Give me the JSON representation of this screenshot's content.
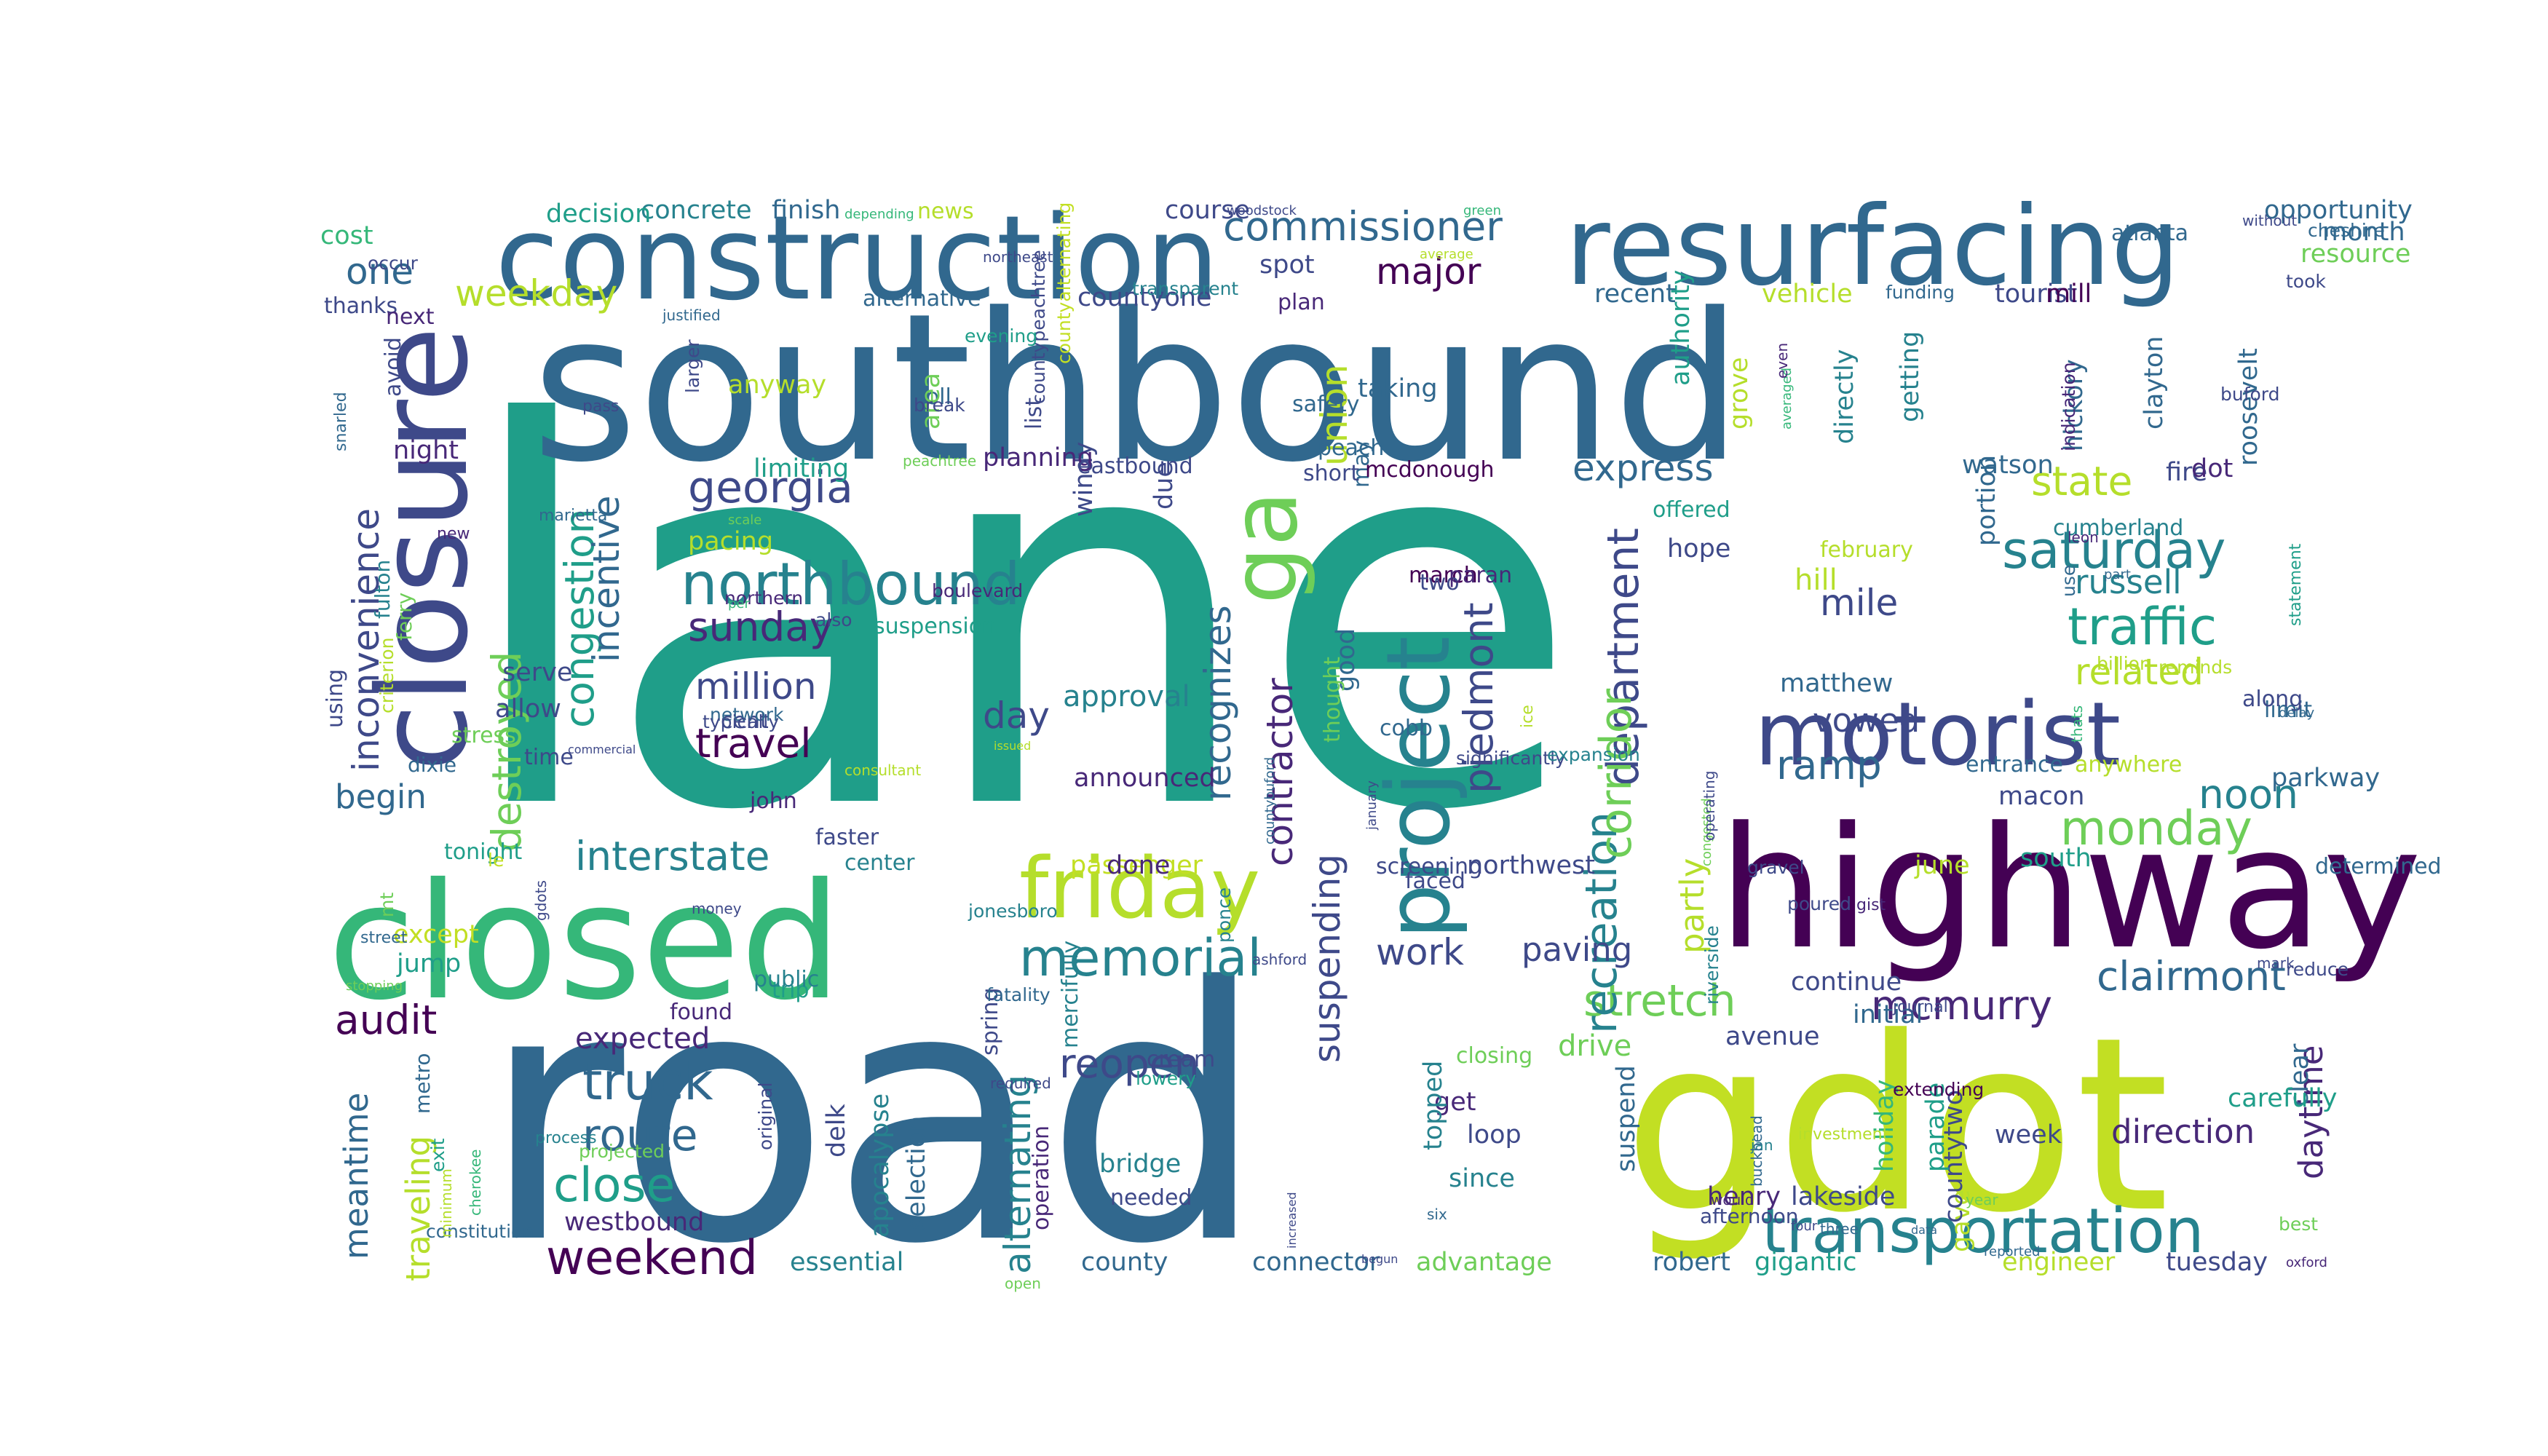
{
  "palette": {
    "background": "#ffffff",
    "colors": [
      "#440154",
      "#482878",
      "#3e4989",
      "#31688e",
      "#26828e",
      "#1f9e89",
      "#35b779",
      "#6ece58",
      "#b5de2b",
      "#c2df23"
    ]
  },
  "words": [
    {
      "text": "lane",
      "c": 5
    },
    {
      "text": "road",
      "c": 3
    },
    {
      "text": "southbound",
      "c": 3
    },
    {
      "text": "gdot",
      "c": 9
    },
    {
      "text": "highway",
      "c": 0
    },
    {
      "text": "closed",
      "c": 6
    },
    {
      "text": "closure",
      "c": 2
    },
    {
      "text": "construction",
      "c": 3
    },
    {
      "text": "resurfacing",
      "c": 3
    },
    {
      "text": "motorist",
      "c": 2
    },
    {
      "text": "transportation",
      "c": 4
    },
    {
      "text": "friday",
      "c": 8
    },
    {
      "text": "project",
      "c": 4
    },
    {
      "text": "ga",
      "c": 7
    },
    {
      "text": "northbound",
      "c": 4
    },
    {
      "text": "commissioner",
      "c": 3
    },
    {
      "text": "memorial",
      "c": 4
    },
    {
      "text": "weekend",
      "c": 0
    },
    {
      "text": "interstate",
      "c": 4
    },
    {
      "text": "saturday",
      "c": 4
    },
    {
      "text": "traffic",
      "c": 5
    },
    {
      "text": "monday",
      "c": 7
    },
    {
      "text": "georgia",
      "c": 2
    },
    {
      "text": "clairmont",
      "c": 3
    },
    {
      "text": "stretch",
      "c": 7
    },
    {
      "text": "mcmurry",
      "c": 1
    },
    {
      "text": "department",
      "c": 2
    },
    {
      "text": "piedmont",
      "c": 2
    },
    {
      "text": "recreation",
      "c": 4
    },
    {
      "text": "corridor",
      "c": 7
    },
    {
      "text": "truck",
      "c": 3
    },
    {
      "text": "route",
      "c": 3
    },
    {
      "text": "close",
      "c": 5
    },
    {
      "text": "reopen",
      "c": 2
    },
    {
      "text": "audit",
      "c": 0
    },
    {
      "text": "sunday",
      "c": 1
    },
    {
      "text": "travel",
      "c": 0
    },
    {
      "text": "million",
      "c": 2
    },
    {
      "text": "ramp",
      "c": 3
    },
    {
      "text": "express",
      "c": 3
    },
    {
      "text": "state",
      "c": 8
    },
    {
      "text": "related",
      "c": 8
    },
    {
      "text": "noon",
      "c": 4
    },
    {
      "text": "mile",
      "c": 2
    },
    {
      "text": "vowed",
      "c": 2
    },
    {
      "text": "work",
      "c": 2
    },
    {
      "text": "paving",
      "c": 2
    },
    {
      "text": "day",
      "c": 2
    },
    {
      "text": "major",
      "c": 0
    },
    {
      "text": "weekday",
      "c": 8
    },
    {
      "text": "one",
      "c": 3
    },
    {
      "text": "congestion",
      "c": 5
    },
    {
      "text": "incentive",
      "c": 3
    },
    {
      "text": "destroyed",
      "c": 7
    },
    {
      "text": "inconvenience",
      "c": 2
    },
    {
      "text": "recognizes",
      "c": 3
    },
    {
      "text": "contractor",
      "c": 1
    },
    {
      "text": "suspending",
      "c": 2
    },
    {
      "text": "alternating",
      "c": 4
    },
    {
      "text": "daytime",
      "c": 1
    },
    {
      "text": "begin",
      "c": 3
    },
    {
      "text": "union",
      "c": 8
    },
    {
      "text": "partly",
      "c": 8
    },
    {
      "text": "russell",
      "c": 4
    },
    {
      "text": "avenue",
      "c": 2
    },
    {
      "text": "drive",
      "c": 7
    },
    {
      "text": "direction",
      "c": 1
    },
    {
      "text": "traveling",
      "c": 8
    },
    {
      "text": "meantime",
      "c": 3
    },
    {
      "text": "expected",
      "c": 1
    },
    {
      "text": "westbound",
      "c": 1
    },
    {
      "text": "essential",
      "c": 4
    },
    {
      "text": "county",
      "c": 3
    },
    {
      "text": "connector",
      "c": 3
    },
    {
      "text": "advantage",
      "c": 7
    },
    {
      "text": "robert",
      "c": 3
    },
    {
      "text": "gigantic",
      "c": 5
    },
    {
      "text": "engineer",
      "c": 8
    },
    {
      "text": "tuesday",
      "c": 2
    },
    {
      "text": "lakeside",
      "c": 2
    },
    {
      "text": "henry",
      "c": 1
    },
    {
      "text": "bridge",
      "c": 4
    },
    {
      "text": "needed",
      "c": 2
    },
    {
      "text": "since",
      "c": 4
    },
    {
      "text": "loop",
      "c": 2
    },
    {
      "text": "get",
      "c": 1
    },
    {
      "text": "topped",
      "c": 4
    },
    {
      "text": "closing",
      "c": 7
    },
    {
      "text": "delk",
      "c": 2
    },
    {
      "text": "apocalypse",
      "c": 4
    },
    {
      "text": "selection",
      "c": 3
    },
    {
      "text": "spring",
      "c": 2
    },
    {
      "text": "operation",
      "c": 1
    },
    {
      "text": "mercifully",
      "c": 4
    },
    {
      "text": "passenger",
      "c": 9
    },
    {
      "text": "done",
      "c": 1
    },
    {
      "text": "faced",
      "c": 2
    },
    {
      "text": "northwest",
      "c": 2
    },
    {
      "text": "continue",
      "c": 2
    },
    {
      "text": "initial",
      "c": 3
    },
    {
      "text": "june",
      "c": 8
    },
    {
      "text": "south",
      "c": 5
    },
    {
      "text": "determined",
      "c": 3
    },
    {
      "text": "clear",
      "c": 3
    },
    {
      "text": "carefully",
      "c": 5
    },
    {
      "text": "week",
      "c": 2
    },
    {
      "text": "gave",
      "c": 8
    },
    {
      "text": "countytwo",
      "c": 2
    },
    {
      "text": "holiday",
      "c": 6
    },
    {
      "text": "parade",
      "c": 5
    },
    {
      "text": "suspend",
      "c": 3
    },
    {
      "text": "offered",
      "c": 5
    },
    {
      "text": "hope",
      "c": 2
    },
    {
      "text": "hill",
      "c": 8
    },
    {
      "text": "february",
      "c": 8
    },
    {
      "text": "matthew",
      "c": 3
    },
    {
      "text": "entrance",
      "c": 3
    },
    {
      "text": "macon",
      "c": 2
    },
    {
      "text": "anywhere",
      "c": 8
    },
    {
      "text": "parkway",
      "c": 3
    },
    {
      "text": "limit",
      "c": 3
    },
    {
      "text": "along",
      "c": 2
    },
    {
      "text": "cumberland",
      "c": 4
    },
    {
      "text": "fire",
      "c": 2
    },
    {
      "text": "dot",
      "c": 1
    },
    {
      "text": "roosevelt",
      "c": 3
    },
    {
      "text": "watson",
      "c": 3
    },
    {
      "text": "portion",
      "c": 3
    },
    {
      "text": "hickory",
      "c": 3
    },
    {
      "text": "clayton",
      "c": 3
    },
    {
      "text": "getting",
      "c": 4
    },
    {
      "text": "directly",
      "c": 4
    },
    {
      "text": "grove",
      "c": 8
    },
    {
      "text": "authority",
      "c": 5
    },
    {
      "text": "recent",
      "c": 3
    },
    {
      "text": "vehicle",
      "c": 8
    },
    {
      "text": "tourist",
      "c": 2
    },
    {
      "text": "mill",
      "c": 0
    },
    {
      "text": "funding",
      "c": 3
    },
    {
      "text": "atlanta",
      "c": 3
    },
    {
      "text": "cheshire",
      "c": 3
    },
    {
      "text": "opportunity",
      "c": 3
    },
    {
      "text": "month",
      "c": 3
    },
    {
      "text": "resource",
      "c": 7
    },
    {
      "text": "buford",
      "c": 2
    },
    {
      "text": "spot",
      "c": 2
    },
    {
      "text": "plan",
      "c": 1
    },
    {
      "text": "taking",
      "c": 3
    },
    {
      "text": "safety",
      "c": 3
    },
    {
      "text": "may",
      "c": 3
    },
    {
      "text": "peach",
      "c": 3
    },
    {
      "text": "mcdonough",
      "c": 0
    },
    {
      "text": "short",
      "c": 2
    },
    {
      "text": "march",
      "c": 0
    },
    {
      "text": "two",
      "c": 2
    },
    {
      "text": "paran",
      "c": 1
    },
    {
      "text": "good",
      "c": 3
    },
    {
      "text": "cobb",
      "c": 3
    },
    {
      "text": "thought",
      "c": 7
    },
    {
      "text": "approval",
      "c": 4
    },
    {
      "text": "announced",
      "c": 1
    },
    {
      "text": "windy",
      "c": 2
    },
    {
      "text": "due",
      "c": 2
    },
    {
      "text": "countyone",
      "c": 2
    },
    {
      "text": "planning",
      "c": 1
    },
    {
      "text": "eastbound",
      "c": 2
    },
    {
      "text": "toll",
      "c": 3
    },
    {
      "text": "area",
      "c": 7
    },
    {
      "text": "list",
      "c": 2
    },
    {
      "text": "limiting",
      "c": 5
    },
    {
      "text": "pacing",
      "c": 8
    },
    {
      "text": "boulevard",
      "c": 1
    },
    {
      "text": "suspension",
      "c": 5
    },
    {
      "text": "also",
      "c": 2
    },
    {
      "text": "anyway",
      "c": 8
    },
    {
      "text": "alternative",
      "c": 3
    },
    {
      "text": "finish",
      "c": 3
    },
    {
      "text": "news",
      "c": 8
    },
    {
      "text": "course",
      "c": 2
    },
    {
      "text": "concrete",
      "c": 4
    },
    {
      "text": "decision",
      "c": 5
    },
    {
      "text": "cost",
      "c": 6
    },
    {
      "text": "thanks",
      "c": 2
    },
    {
      "text": "next",
      "c": 1
    },
    {
      "text": "night",
      "c": 1
    },
    {
      "text": "avoid",
      "c": 2
    },
    {
      "text": "serve",
      "c": 2
    },
    {
      "text": "allow",
      "c": 2
    },
    {
      "text": "stress",
      "c": 7
    },
    {
      "text": "time",
      "c": 2
    },
    {
      "text": "dixie",
      "c": 3
    },
    {
      "text": "tonight",
      "c": 5
    },
    {
      "text": "le",
      "c": 9
    },
    {
      "text": "center",
      "c": 4
    },
    {
      "text": "faster",
      "c": 2
    },
    {
      "text": "john",
      "c": 1
    },
    {
      "text": "cent",
      "c": 2
    },
    {
      "text": "except",
      "c": 9
    },
    {
      "text": "jump",
      "c": 5
    },
    {
      "text": "found",
      "c": 1
    },
    {
      "text": "trip",
      "c": 5
    },
    {
      "text": "public",
      "c": 4
    },
    {
      "text": "mt",
      "c": 7
    },
    {
      "text": "using",
      "c": 2
    },
    {
      "text": "criterion",
      "c": 8
    },
    {
      "text": "fulton",
      "c": 4
    },
    {
      "text": "ferry",
      "c": 7
    },
    {
      "text": "metro",
      "c": 3
    },
    {
      "text": "exit",
      "c": 5
    },
    {
      "text": "constitution",
      "c": 3
    },
    {
      "text": "process",
      "c": 4
    },
    {
      "text": "projected",
      "c": 7
    },
    {
      "text": "northern",
      "c": 1
    },
    {
      "text": "marietta",
      "c": 3
    },
    {
      "text": "pass",
      "c": 2
    },
    {
      "text": "occur",
      "c": 2
    },
    {
      "text": "snarled",
      "c": 3
    },
    {
      "text": "new",
      "c": 1
    },
    {
      "text": "street",
      "c": 3
    },
    {
      "text": "stopping",
      "c": 7
    },
    {
      "text": "minimum",
      "c": 8
    },
    {
      "text": "cherokee",
      "c": 6
    },
    {
      "text": "depending",
      "c": 6
    },
    {
      "text": "northeast",
      "c": 2
    },
    {
      "text": "transparent",
      "c": 4
    },
    {
      "text": "woodstock",
      "c": 2
    },
    {
      "text": "green",
      "c": 6
    },
    {
      "text": "average",
      "c": 8
    },
    {
      "text": "countypeachtree",
      "c": 2
    },
    {
      "text": "countyalternating",
      "c": 9
    },
    {
      "text": "evening",
      "c": 5
    },
    {
      "text": "larger",
      "c": 2
    },
    {
      "text": "justified",
      "c": 3
    },
    {
      "text": "break",
      "c": 2
    },
    {
      "text": "peachtree",
      "c": 7
    },
    {
      "text": "scale",
      "c": 7
    },
    {
      "text": "per",
      "c": 6
    },
    {
      "text": "network",
      "c": 3
    },
    {
      "text": "typically",
      "c": 2
    },
    {
      "text": "commercial",
      "c": 2
    },
    {
      "text": "consultant",
      "c": 8
    },
    {
      "text": "issued",
      "c": 8
    },
    {
      "text": "countybuford",
      "c": 3
    },
    {
      "text": "january",
      "c": 2
    },
    {
      "text": "screening",
      "c": 2
    },
    {
      "text": "significantly",
      "c": 2
    },
    {
      "text": "expansion",
      "c": 4
    },
    {
      "text": "ice",
      "c": 8
    },
    {
      "text": "averaged",
      "c": 6
    },
    {
      "text": "even",
      "c": 1
    },
    {
      "text": "took",
      "c": 2
    },
    {
      "text": "without",
      "c": 2
    },
    {
      "text": "indication",
      "c": 1
    },
    {
      "text": "leon",
      "c": 1
    },
    {
      "text": "use",
      "c": 3
    },
    {
      "text": "part",
      "c": 3
    },
    {
      "text": "billion",
      "c": 8
    },
    {
      "text": "reminds",
      "c": 8
    },
    {
      "text": "statement",
      "c": 5
    },
    {
      "text": "delay",
      "c": 3
    },
    {
      "text": "mark",
      "c": 2
    },
    {
      "text": "reduce",
      "c": 2
    },
    {
      "text": "thats",
      "c": 6
    },
    {
      "text": "congested",
      "c": 7
    },
    {
      "text": "operating",
      "c": 2
    },
    {
      "text": "gravel",
      "c": 2
    },
    {
      "text": "poured",
      "c": 2
    },
    {
      "text": "riverside",
      "c": 4
    },
    {
      "text": "gist",
      "c": 1
    },
    {
      "text": "journal",
      "c": 2
    },
    {
      "text": "extending",
      "c": 0
    },
    {
      "text": "would",
      "c": 1
    },
    {
      "text": "jan",
      "c": 4
    },
    {
      "text": "buckhead",
      "c": 3
    },
    {
      "text": "investment",
      "c": 8
    },
    {
      "text": "afternoon",
      "c": 2
    },
    {
      "text": "four",
      "c": 2
    },
    {
      "text": "three",
      "c": 3
    },
    {
      "text": "data",
      "c": 3
    },
    {
      "text": "year",
      "c": 7
    },
    {
      "text": "best",
      "c": 7
    },
    {
      "text": "oxford",
      "c": 1
    },
    {
      "text": "reported",
      "c": 3
    },
    {
      "text": "gdots",
      "c": 2
    },
    {
      "text": "money",
      "c": 2
    },
    {
      "text": "jonesboro",
      "c": 4
    },
    {
      "text": "fatality",
      "c": 3
    },
    {
      "text": "required",
      "c": 2
    },
    {
      "text": "ponce",
      "c": 4
    },
    {
      "text": "ashford",
      "c": 2
    },
    {
      "text": "cream",
      "c": 2
    },
    {
      "text": "lowery",
      "c": 5
    },
    {
      "text": "original",
      "c": 2
    },
    {
      "text": "open",
      "c": 7
    },
    {
      "text": "begun",
      "c": 2
    },
    {
      "text": "increased",
      "c": 2
    },
    {
      "text": "six",
      "c": 3
    },
    {
      "text": "run",
      "c": 7
    },
    {
      "text": "schedule",
      "c": 2
    },
    {
      "text": "united",
      "c": 2
    }
  ]
}
